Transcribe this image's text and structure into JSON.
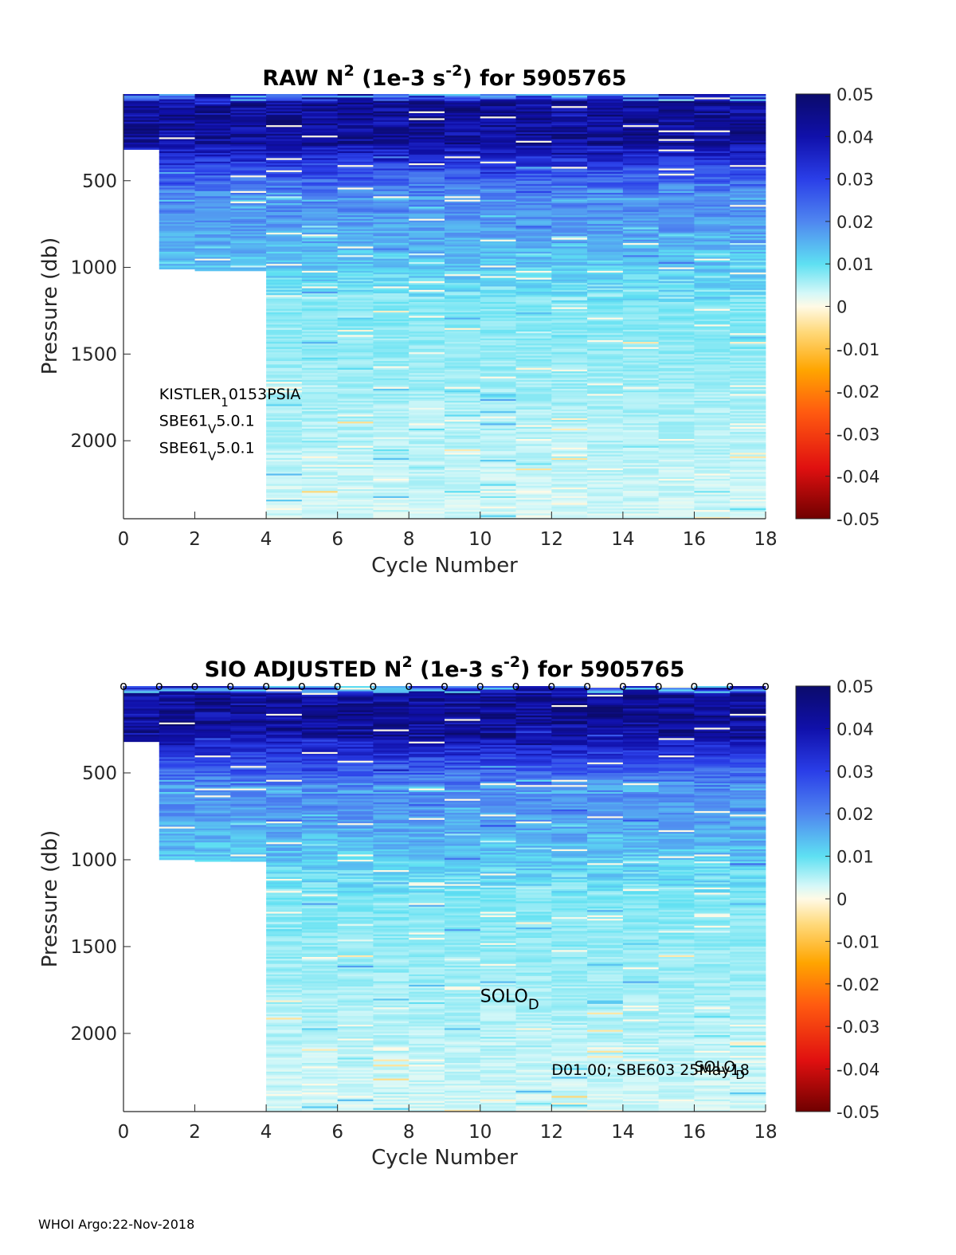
{
  "chart_data": [
    {
      "type": "heatmap",
      "title": "RAW N^2 (1e-3 s^-2) for 5905765",
      "title_parts": {
        "a": "RAW N",
        "sup1": "2",
        "b": " (1e-3 s",
        "sup2": "-2",
        "c": ") for 5905765"
      },
      "xlabel": "Cycle Number",
      "ylabel": "Pressure (db)",
      "xlim": [
        0,
        18
      ],
      "ylim": [
        0,
        2450
      ],
      "xticks": [
        "0",
        "2",
        "4",
        "6",
        "8",
        "10",
        "12",
        "14",
        "16",
        "18"
      ],
      "yticks": [
        {
          "value": 500,
          "label": "500"
        },
        {
          "value": 1000,
          "label": "1000"
        },
        {
          "value": 1500,
          "label": "1500"
        },
        {
          "value": 2000,
          "label": "2000"
        }
      ],
      "colorbar": {
        "range": [
          -0.05,
          0.05
        ],
        "ticks": [
          "0.05",
          "0.04",
          "0.03",
          "0.02",
          "0.01",
          "0",
          "-0.01",
          "-0.02",
          "-0.03",
          "-0.04",
          "-0.05"
        ]
      },
      "cycles": [
        0,
        1,
        2,
        3,
        4,
        5,
        6,
        7,
        8,
        9,
        10,
        11,
        12,
        13,
        14,
        15,
        16,
        17
      ],
      "max_pressure": [
        320,
        1010,
        1020,
        1020,
        2450,
        2450,
        2450,
        2450,
        2450,
        2450,
        2450,
        2450,
        2450,
        2450,
        2450,
        2450,
        2450,
        2450
      ],
      "profile_model": {
        "surface": 0.05,
        "upper_depth": 300,
        "mid": 0.028,
        "mid_depth": 620,
        "deep": 0.008,
        "bottom": 0.003
      },
      "annotations": [
        {
          "base": "KISTLER",
          "sub": "1",
          "rest": "0153PSIA",
          "x": 1.0,
          "y": 1760
        },
        {
          "base": "SBE61",
          "sub": "V",
          "rest": "5.0.1",
          "x": 1.0,
          "y": 1915
        },
        {
          "base": "SBE61",
          "sub": "V",
          "rest": "5.0.1",
          "x": 1.0,
          "y": 2070
        }
      ],
      "markers": null
    },
    {
      "type": "heatmap",
      "title": "SIO ADJUSTED N^2 (1e-3 s^-2) for 5905765",
      "title_parts": {
        "a": "SIO  ADJUSTED N",
        "sup1": "2",
        "b": " (1e-3 s",
        "sup2": "-2",
        "c": ") for 5905765"
      },
      "xlabel": "Cycle Number",
      "ylabel": "Pressure (db)",
      "xlim": [
        0,
        18
      ],
      "ylim": [
        0,
        2450
      ],
      "xticks": [
        "0",
        "2",
        "4",
        "6",
        "8",
        "10",
        "12",
        "14",
        "16",
        "18"
      ],
      "yticks": [
        {
          "value": 500,
          "label": "500"
        },
        {
          "value": 1000,
          "label": "1000"
        },
        {
          "value": 1500,
          "label": "1500"
        },
        {
          "value": 2000,
          "label": "2000"
        }
      ],
      "colorbar": {
        "range": [
          -0.05,
          0.05
        ],
        "ticks": [
          "0.05",
          "0.04",
          "0.03",
          "0.02",
          "0.01",
          "0",
          "-0.01",
          "-0.02",
          "-0.03",
          "-0.04",
          "-0.05"
        ]
      },
      "cycles": [
        0,
        1,
        2,
        3,
        4,
        5,
        6,
        7,
        8,
        9,
        10,
        11,
        12,
        13,
        14,
        15,
        16,
        17
      ],
      "max_pressure": [
        320,
        1000,
        1010,
        1010,
        2450,
        2450,
        2450,
        2450,
        2450,
        2450,
        2450,
        2450,
        2450,
        2450,
        2450,
        2450,
        2450,
        2450
      ],
      "profile_model": {
        "surface": 0.05,
        "upper_depth": 300,
        "mid": 0.028,
        "mid_depth": 620,
        "deep": 0.008,
        "bottom": 0.003
      },
      "annotations": [
        {
          "base": "SOLO",
          "sub": "D",
          "rest": "",
          "x": 10.0,
          "y": 1820,
          "large": true
        },
        {
          "base": "D01.00; SBE603 25May18",
          "sub": "",
          "rest": "",
          "x": 12.0,
          "y": 2240
        },
        {
          "base": "SOLO",
          "sub": "D",
          "rest": "",
          "x": 16.0,
          "y": 2220
        }
      ],
      "markers": {
        "symbol": "o",
        "x": [
          0,
          1,
          2,
          3,
          4,
          5,
          6,
          7,
          8,
          9,
          10,
          11,
          12,
          13,
          14,
          15,
          16,
          17,
          18
        ],
        "y": 0
      }
    }
  ],
  "footer": "WHOI Argo:22-Nov-2018"
}
